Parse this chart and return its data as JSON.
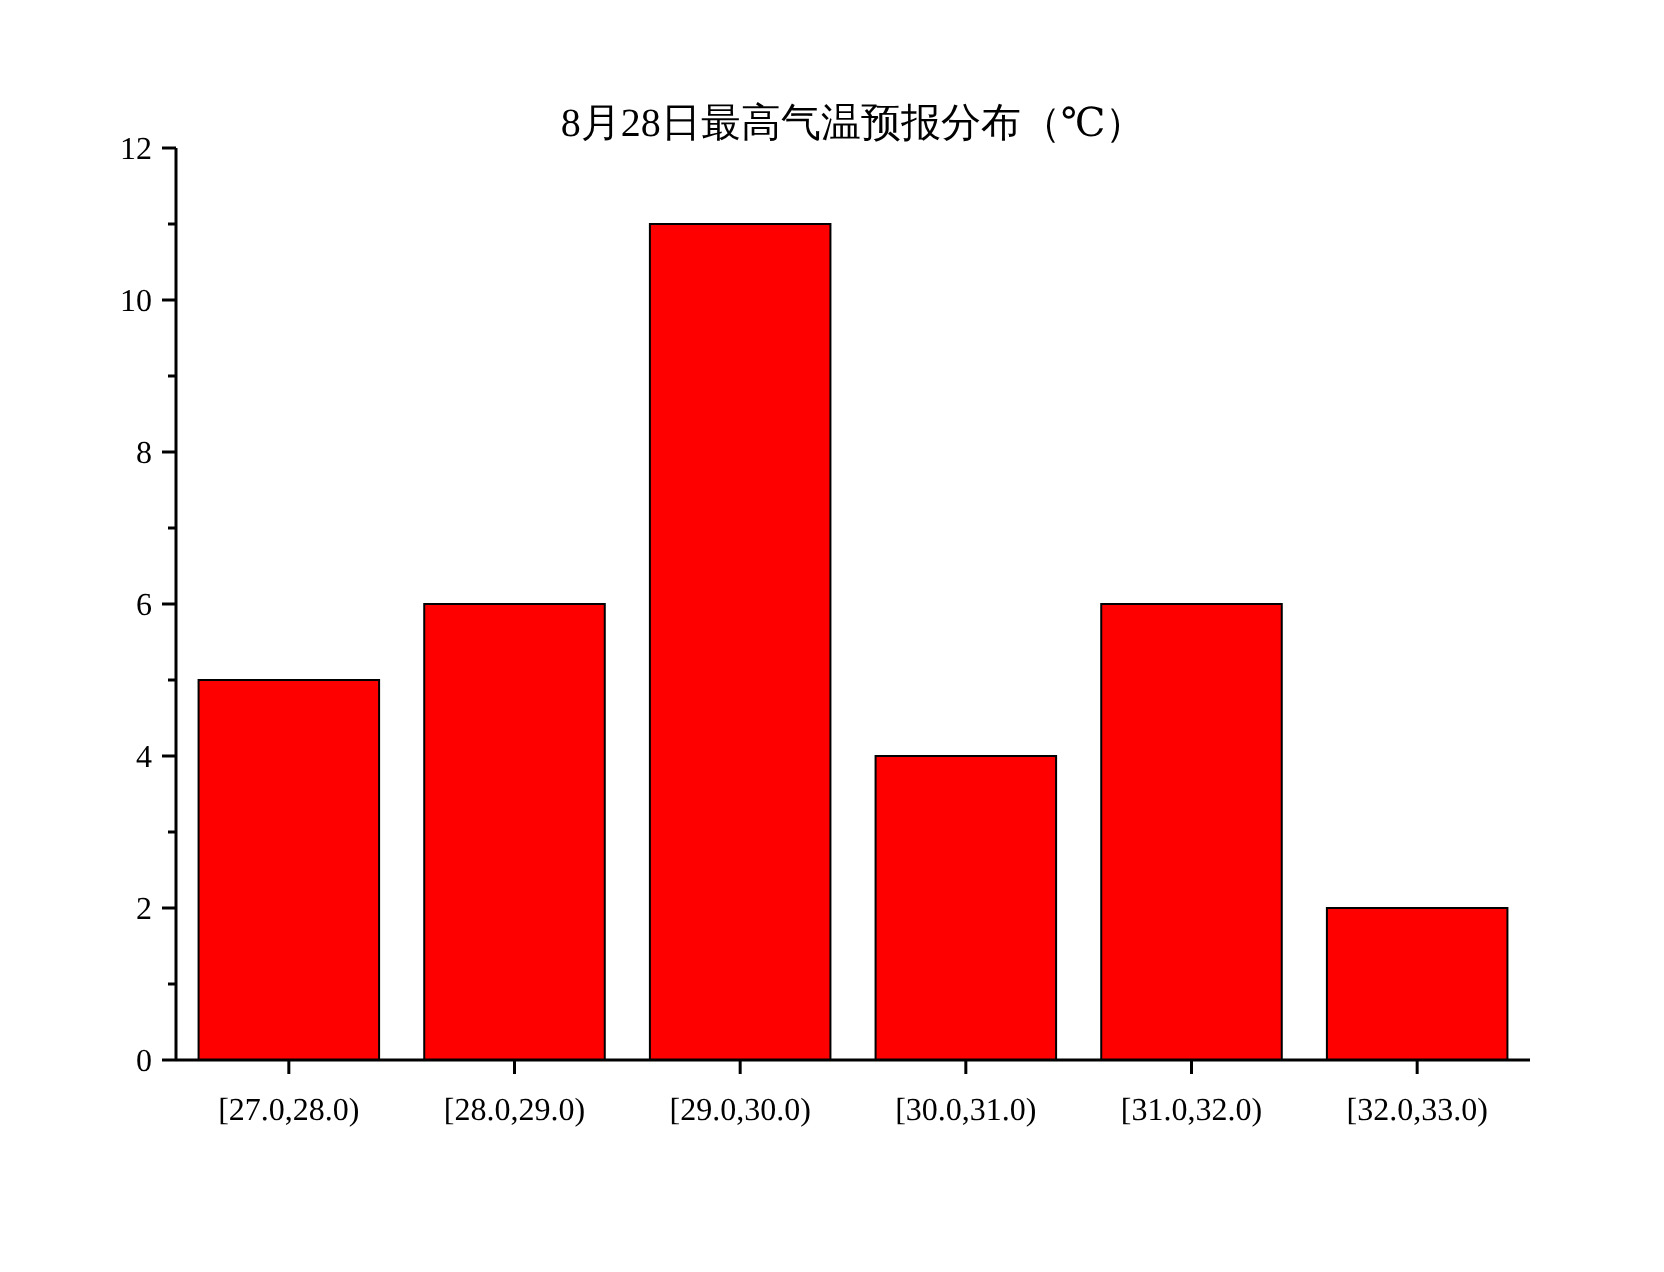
{
  "chart_data": {
    "type": "bar",
    "title": "8月28日最高气温预报分布（℃）",
    "categories": [
      "[27.0,28.0)",
      "[28.0,29.0)",
      "[29.0,30.0)",
      "[30.0,31.0)",
      "[31.0,32.0)",
      "[32.0,33.0)"
    ],
    "values": [
      5,
      6,
      11,
      4,
      6,
      2
    ],
    "color": "#ff0000",
    "ylim": [
      0,
      12
    ],
    "yticks": [
      0,
      {
        "value": 1,
        "label": null
      },
      2,
      {
        "value": 3,
        "label": null
      },
      4,
      {
        "value": 5,
        "label": null
      },
      6,
      {
        "value": 7,
        "label": null
      },
      8,
      {
        "value": 9,
        "label": null
      },
      10,
      {
        "value": 11,
        "label": null
      },
      12
    ],
    "grid": false
  }
}
